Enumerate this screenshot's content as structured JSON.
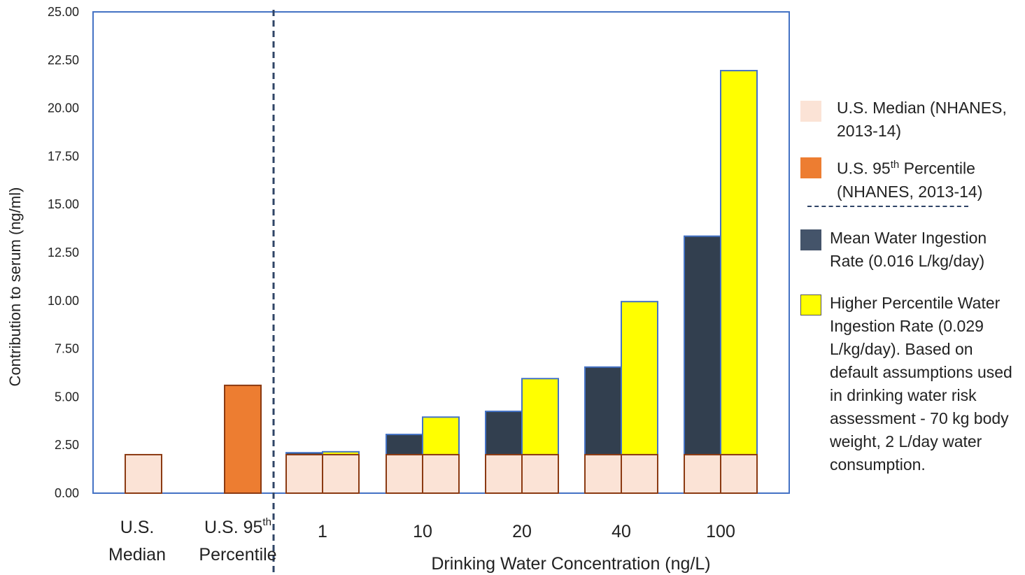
{
  "chart_data": {
    "type": "bar",
    "stacked": true,
    "xlabel": "Drinking Water Concentration (ng/L)",
    "ylabel": "Contribution to serum (ng/ml)",
    "ylim": [
      0,
      25
    ],
    "yticks": [
      "0.00",
      "2.50",
      "5.00",
      "7.50",
      "10.00",
      "12.50",
      "15.00",
      "17.50",
      "20.00",
      "22.50",
      "25.00"
    ],
    "grid": false,
    "legend_position": "right",
    "reference_categories": [
      {
        "line1": "U.S.",
        "line2": "Median",
        "value": 2.0,
        "color": "#fbe3d6",
        "edge": "#8b3a12"
      },
      {
        "line1": "U.S. 95",
        "line1_sup": "th",
        "line2": "Percentile",
        "value": 5.6,
        "color": "#ed7d31",
        "edge": "#8b3a12"
      }
    ],
    "concentrations": [
      "1",
      "10",
      "20",
      "40",
      "100"
    ],
    "baseline": {
      "name": "U.S. Median (NHANES, 2013-14)",
      "value": 2.0
    },
    "series": [
      {
        "name": "Mean Water Ingestion Rate (0.016 L/kg/day)",
        "color": "#323f4f",
        "totals": [
          2.1,
          3.05,
          4.25,
          6.55,
          13.35
        ]
      },
      {
        "name": "Higher Percentile Water Ingestion Rate (0.029 L/kg/day)",
        "color": "#ffff00",
        "totals": [
          2.15,
          3.95,
          5.95,
          9.95,
          21.95
        ]
      }
    ],
    "colors": {
      "baseline": "#fbe3d6",
      "baseline_edge": "#8b3a12",
      "percentile95": "#ed7d31",
      "mean": "#323f4f",
      "higher": "#ffff00",
      "frame": "#4472c4",
      "divider": "#2f4466"
    }
  },
  "legend": {
    "median": "U.S. Median (NHANES, 2013-14)",
    "p95_a": "U.S. 95",
    "p95_sup": "th",
    "p95_b": " Percentile (NHANES, 2013-14)",
    "mean": "Mean Water Ingestion Rate (0.016 L/kg/day)",
    "higher": "Higher Percentile Water Ingestion Rate (0.029 L/kg/day). Based on default assumptions used in drinking water risk assessment - 70 kg body weight, 2 L/day water consumption."
  }
}
